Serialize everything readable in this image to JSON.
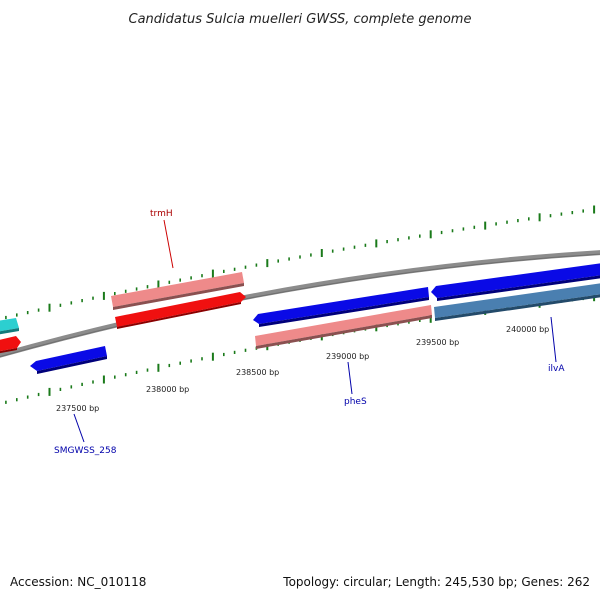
{
  "title": "Candidatus Sulcia muelleri GWSS, complete genome",
  "footer": {
    "accession": "Accession: NC_010118",
    "summary": "Topology: circular; Length: 245,530 bp; Genes: 262"
  },
  "colors": {
    "tick": "#1a7a1a",
    "backbone": "#8c8c8c",
    "gene_blue": "#0a0ae6",
    "gene_red": "#f01010",
    "gene_pink": "#ee8a8a",
    "gene_steel": "#4a7fb0",
    "gene_cyan": "#2ccfd0",
    "label_blue": "#0000aa",
    "label_red": "#aa0000"
  },
  "position_labels": [
    "237500 bp",
    "238000 bp",
    "238500 bp",
    "239000 bp",
    "239500 bp",
    "240000 bp"
  ],
  "gene_labels": [
    {
      "name": "trmH",
      "color": "#aa0000"
    },
    {
      "name": "pheS",
      "color": "#0000aa"
    },
    {
      "name": "ilvA",
      "color": "#0000aa"
    },
    {
      "name": "SMGWSS_258",
      "color": "#0000aa"
    }
  ]
}
